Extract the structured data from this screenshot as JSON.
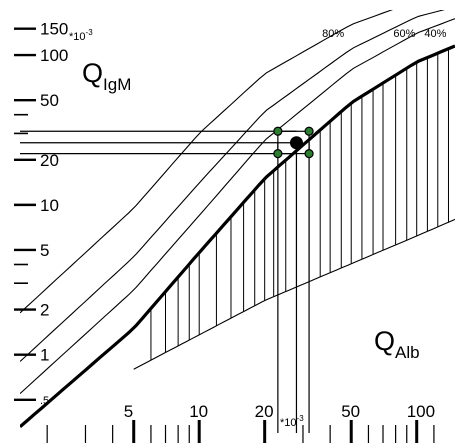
{
  "chart_data": {
    "type": "line",
    "title": "",
    "x_axis": {
      "quantity": "Q_Alb",
      "scale": "log",
      "multiplier_label": "*10",
      "multiplier_exp": "-3",
      "range": [
        1.5,
        150
      ],
      "tick_labels": [
        "5",
        "10",
        "20",
        "50",
        "100"
      ],
      "tick_values": [
        5,
        10,
        20,
        50,
        100
      ]
    },
    "y_axis": {
      "quantity": "Q_IgM",
      "scale": "log",
      "multiplier_label": "*10",
      "multiplier_exp": "-3",
      "range": [
        0.3,
        200
      ],
      "tick_labels": [
        "150",
        "100",
        "50",
        "20",
        "10",
        "5",
        "2",
        "1",
        ".5"
      ],
      "tick_values": [
        150,
        100,
        50,
        20,
        10,
        5,
        2,
        1,
        0.5
      ]
    },
    "axis_titles": {
      "y_main": "Q",
      "y_sub": "IgM",
      "x_main": "Q",
      "x_sub": "Alb"
    },
    "series": [
      {
        "name": "80%",
        "x": [
          1.5,
          5,
          10,
          20,
          50,
          100,
          150
        ],
        "y": [
          1.9,
          9.5,
          30,
          75,
          160,
          230,
          260
        ]
      },
      {
        "name": "60%",
        "x": [
          1.5,
          5,
          10,
          20,
          50,
          100,
          150
        ],
        "y": [
          0.9,
          4.5,
          14,
          42,
          110,
          180,
          210
        ]
      },
      {
        "name": "40%",
        "x": [
          1.5,
          5,
          10,
          20,
          50,
          100,
          150
        ],
        "y": [
          0.55,
          2.7,
          8.5,
          27,
          80,
          140,
          175
        ]
      },
      {
        "name": "",
        "x": [
          1.5,
          5,
          10,
          20,
          50,
          100,
          150
        ],
        "y": [
          0.33,
          1.5,
          4.8,
          15,
          48,
          90,
          115
        ]
      },
      {
        "name": "",
        "x": [
          5,
          20,
          100,
          150
        ],
        "y": [
          0.8,
          2.3,
          6.2,
          8.0
        ]
      }
    ],
    "patient_point": {
      "x": 28,
      "y": 26
    },
    "error_box": {
      "x": [
        23,
        32
      ],
      "y": [
        22,
        31
      ]
    },
    "hatched_region": "between thick reference line and lower boundary"
  }
}
